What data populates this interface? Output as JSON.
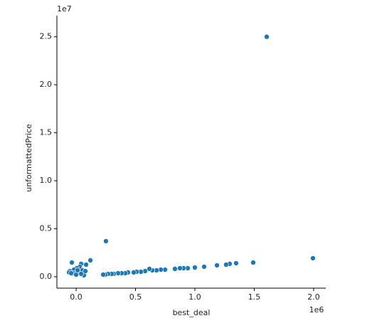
{
  "chart_data": {
    "type": "scatter",
    "xlabel": "best_deal",
    "ylabel": "unformattedPrice",
    "x_offset_label": "1e6",
    "y_offset_label": "1e7",
    "color": "#1f77b4",
    "xlim": [
      -0.162,
      2.102
    ],
    "ylim": [
      -0.119,
      2.72
    ],
    "xticks": [
      {
        "value": 0,
        "label": "0.0"
      },
      0.5,
      {
        "value": 1,
        "label": "1.0"
      },
      1.5,
      {
        "value": 2,
        "label": "2.0"
      }
    ],
    "yticks": [
      {
        "value": 0,
        "label": "0.0"
      },
      0.5,
      {
        "value": 1,
        "label": "1.0"
      },
      1.5,
      {
        "value": 2,
        "label": "2.0"
      },
      2.5
    ],
    "x": [
      1.605,
      1.994,
      0.251,
      1.491,
      1.347,
      1.293,
      1.263,
      1.186,
      1.078,
      1.0,
      0.94,
      0.904,
      0.874,
      0.832,
      0.749,
      0.713,
      0.677,
      0.641,
      0.617,
      0.581,
      0.545,
      0.509,
      0.485,
      0.437,
      0.413,
      0.383,
      0.353,
      0.317,
      0.299,
      0.269,
      0.246,
      0.228,
      -0.036,
      0.12,
      0.084,
      0.042,
      0.03,
      0.006,
      -0.018,
      -0.054,
      -0.06,
      -0.024,
      0.018,
      0.054,
      0.066,
      0.042,
      0,
      0.078,
      0.012,
      -0.042
    ],
    "values": [
      2.5,
      0.193,
      0.371,
      0.148,
      0.141,
      0.134,
      0.126,
      0.119,
      0.104,
      0.096,
      0.089,
      0.089,
      0.089,
      0.082,
      0.074,
      0.074,
      0.067,
      0.067,
      0.082,
      0.059,
      0.052,
      0.052,
      0.045,
      0.045,
      0.037,
      0.037,
      0.037,
      0.03,
      0.03,
      0.03,
      0.022,
      0.022,
      0.148,
      0.171,
      0.126,
      0.134,
      0.104,
      0.089,
      0.074,
      0.059,
      0.045,
      0.037,
      0.045,
      0.067,
      0.015,
      0.03,
      0.022,
      0.059,
      0.067,
      0.037
    ]
  }
}
